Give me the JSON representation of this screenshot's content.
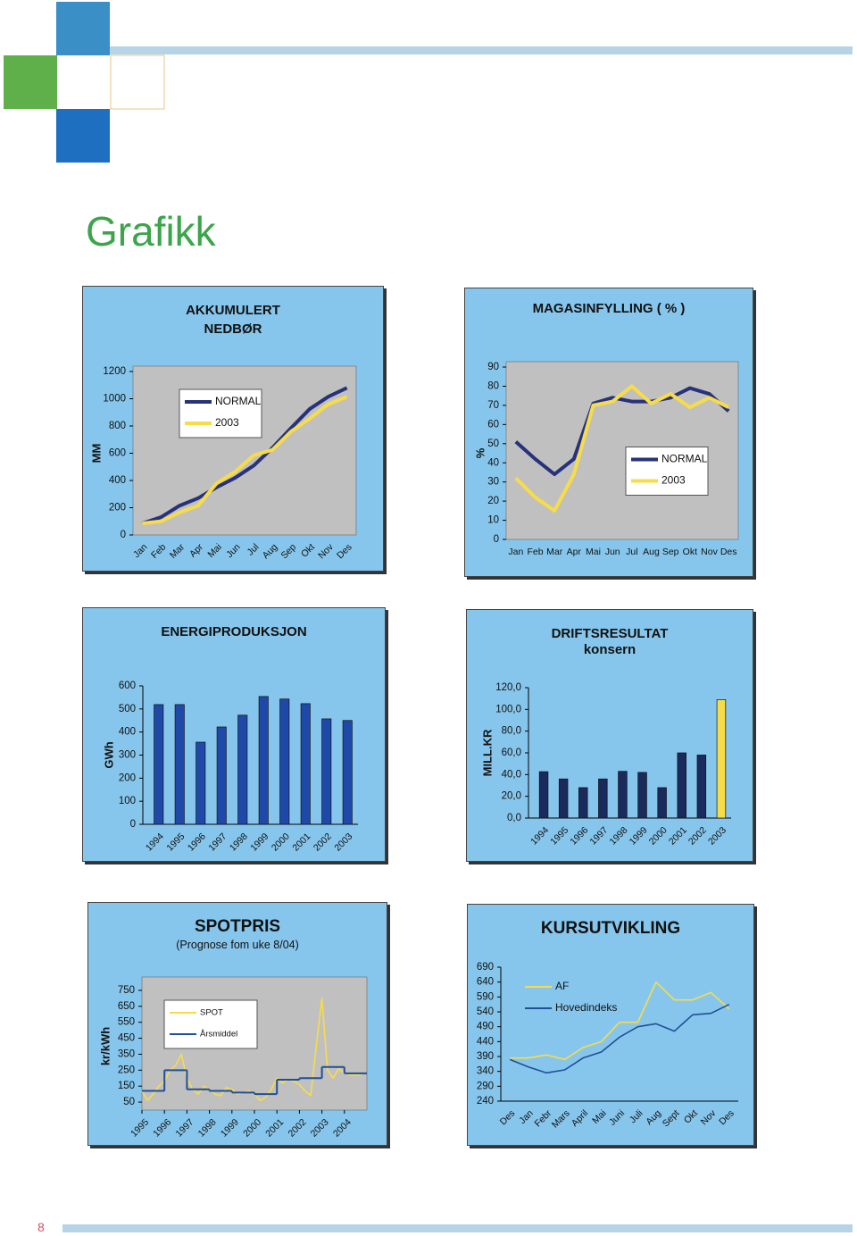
{
  "heading": "Grafikk",
  "page_number": "8",
  "chart_data": [
    {
      "type": "line",
      "title": "AKKUMULERT NEDBØR",
      "y_label": "MM",
      "categories": [
        "Jan",
        "Feb",
        "Mar",
        "Apr",
        "Mai",
        "Jun",
        "Jul",
        "Aug",
        "Sep",
        "Okt",
        "Nov",
        "Des"
      ],
      "ylim": [
        0,
        1200
      ],
      "yticks": [
        0,
        200,
        400,
        600,
        800,
        1000,
        1200
      ],
      "legend": "upper left",
      "plot_background": "#c0c0c0",
      "series": [
        {
          "name": "NORMAL",
          "color": "#27327a",
          "values": [
            85,
            130,
            215,
            270,
            350,
            420,
            510,
            640,
            785,
            925,
            1015,
            1080
          ]
        },
        {
          "name": "2003",
          "color": "#f7dc4a",
          "values": [
            85,
            100,
            165,
            215,
            380,
            465,
            585,
            625,
            760,
            855,
            960,
            1015
          ]
        }
      ]
    },
    {
      "type": "line",
      "title": "MAGASINFYLLING ( % )",
      "y_label": "%",
      "categories": [
        "Jan",
        "Feb",
        "Mar",
        "Apr",
        "Mai",
        "Jun",
        "Jul",
        "Aug",
        "Sep",
        "Okt",
        "Nov",
        "Des"
      ],
      "ylim": [
        0,
        90
      ],
      "yticks": [
        0,
        10,
        20,
        30,
        40,
        50,
        60,
        70,
        80,
        90
      ],
      "legend": "center right",
      "plot_background": "#c0c0c0",
      "series": [
        {
          "name": "NORMAL",
          "color": "#27327a",
          "values": [
            51,
            42,
            34,
            42,
            71,
            74,
            72,
            72,
            74,
            79,
            76,
            67
          ]
        },
        {
          "name": "2003",
          "color": "#f7dc4a",
          "values": [
            32,
            22,
            15,
            34,
            70,
            72,
            80,
            71,
            76,
            69,
            74,
            69
          ]
        }
      ]
    },
    {
      "type": "bar",
      "title": "ENERGIPRODUKSJON",
      "y_label": "GWh",
      "categories": [
        "1994",
        "1995",
        "1996",
        "1997",
        "1998",
        "1999",
        "2000",
        "2001",
        "2002",
        "2003"
      ],
      "values": [
        519,
        519,
        356,
        422,
        473,
        554,
        543,
        523,
        457,
        450
      ],
      "color": "#1f49a8",
      "ylim": [
        0,
        600
      ],
      "yticks": [
        0,
        100,
        200,
        300,
        400,
        500,
        600
      ],
      "grid": false
    },
    {
      "type": "bar",
      "title": "DRIFTSRESULTAT",
      "subtitle": "konsern",
      "y_label": "MILL.KR",
      "categories": [
        "1994",
        "1995",
        "1996",
        "1997",
        "1998",
        "1999",
        "2000",
        "2001",
        "2002",
        "2003"
      ],
      "values": [
        42.7,
        36,
        28,
        36,
        43,
        42,
        28,
        60,
        58,
        109
      ],
      "colors": [
        "#1b2a5c",
        "#1b2a5c",
        "#1b2a5c",
        "#1b2a5c",
        "#1b2a5c",
        "#1b2a5c",
        "#1b2a5c",
        "#1b2a5c",
        "#1b2a5c",
        "#f7dc4a"
      ],
      "ylim": [
        0,
        120
      ],
      "yticks": [
        {
          "value": 0,
          "label": "0,0"
        },
        {
          "value": 20,
          "label": "20,0"
        },
        {
          "value": 40,
          "label": "40,0"
        },
        {
          "value": 60,
          "label": "60,0"
        },
        {
          "value": 80,
          "label": "80,0"
        },
        {
          "value": 100,
          "label": "100,0"
        },
        {
          "value": 120,
          "label": "120,0"
        }
      ],
      "grid": false
    },
    {
      "type": "line",
      "title": "SPOTPRIS",
      "subtitle": "(Prognose fom uke 8/04)",
      "y_label": "kr/kWh",
      "xlim": [
        1995,
        2005
      ],
      "xticks": [
        1995,
        1996,
        1997,
        1998,
        1999,
        2000,
        2001,
        2002,
        2003,
        2004
      ],
      "ylim": [
        0,
        800
      ],
      "yticks": [
        50,
        150,
        250,
        350,
        450,
        550,
        650,
        750
      ],
      "legend": "upper left",
      "plot_background": "#c0c0c0",
      "series": [
        {
          "name": "SPOT",
          "color": "#f7dc4a",
          "x": [
            1995,
            1995.25,
            1995.5,
            1995.75,
            1996,
            1996.25,
            1996.5,
            1996.75,
            1997,
            1997.25,
            1997.5,
            1997.75,
            1998,
            1998.25,
            1998.5,
            1998.75,
            1999,
            1999.25,
            1999.5,
            1999.75,
            2000,
            2000.25,
            2000.5,
            2000.75,
            2001,
            2001.25,
            2001.5,
            2001.75,
            2002,
            2002.25,
            2002.5,
            2002.75,
            2003,
            2003.25,
            2003.5,
            2003.75,
            2004,
            2004.25,
            2004.5,
            2004.75
          ],
          "values": [
            120,
            60,
            100,
            150,
            180,
            250,
            280,
            350,
            200,
            130,
            100,
            150,
            130,
            100,
            90,
            140,
            130,
            100,
            110,
            120,
            100,
            60,
            80,
            130,
            200,
            170,
            190,
            180,
            160,
            120,
            90,
            400,
            700,
            250,
            200,
            260,
            230,
            220,
            220,
            220
          ]
        },
        {
          "name": "Årsmiddel",
          "color": "#1f4f9a",
          "step": true,
          "x": [
            1995,
            1996,
            1997,
            1998,
            1999,
            2000,
            2001,
            2002,
            2003,
            2004
          ],
          "values": [
            120,
            250,
            130,
            120,
            110,
            100,
            190,
            200,
            270,
            230
          ]
        }
      ]
    },
    {
      "type": "line",
      "title": "KURSUTVIKLING",
      "categories": [
        "Des",
        "Jan",
        "Febr",
        "Mars",
        "April",
        "Mai",
        "Juni",
        "Juli",
        "Aug",
        "Sept",
        "Okt",
        "Nov",
        "Des"
      ],
      "ylim": [
        240,
        690
      ],
      "yticks": [
        240,
        290,
        340,
        390,
        440,
        490,
        540,
        590,
        640,
        690
      ],
      "legend": "upper left",
      "series": [
        {
          "name": "AF",
          "color": "#f7dc4a",
          "values": [
            385,
            385,
            395,
            380,
            420,
            440,
            505,
            505,
            640,
            580,
            580,
            605,
            550
          ]
        },
        {
          "name": "Hovedindeks",
          "color": "#1f4f9a",
          "values": [
            380,
            355,
            335,
            345,
            385,
            405,
            455,
            490,
            500,
            475,
            530,
            535,
            565
          ]
        }
      ]
    }
  ]
}
